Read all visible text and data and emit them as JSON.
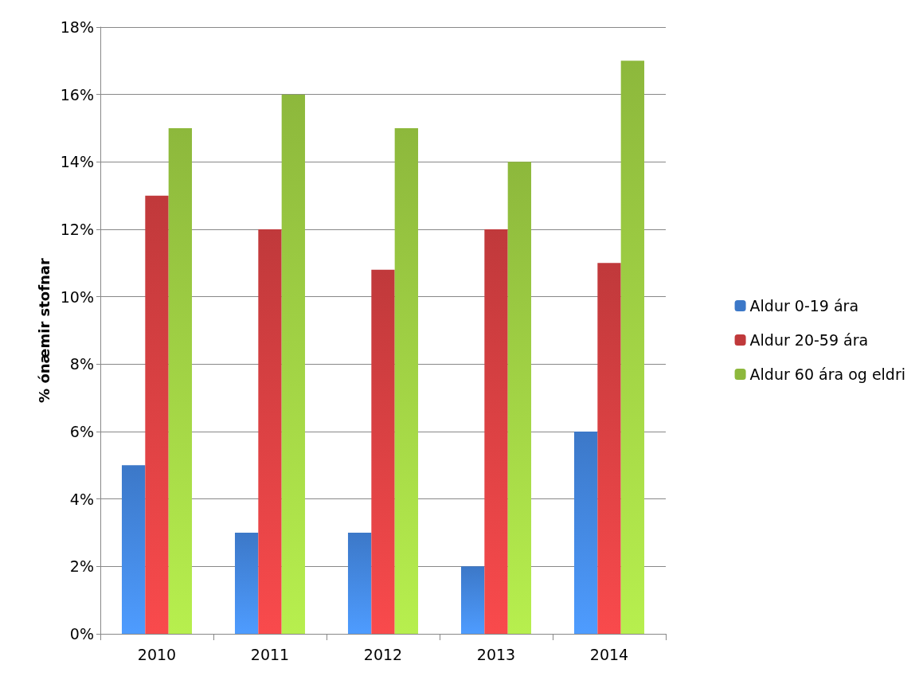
{
  "chart_data": {
    "type": "bar",
    "ylabel": "% ónæmir stofnar",
    "categories": [
      "2010",
      "2011",
      "2012",
      "2013",
      "2014"
    ],
    "series": [
      {
        "name": "Aldur 0-19 ára",
        "color": "#3c78c8",
        "values": [
          5,
          3,
          3,
          2,
          6
        ]
      },
      {
        "name": "Aldur 20-59 ára",
        "color": "#c0393b",
        "values": [
          13,
          12,
          10.8,
          12,
          11
        ]
      },
      {
        "name": "Aldur 60 ára og eldri",
        "color": "#8db83c",
        "values": [
          15,
          16,
          15,
          14,
          17
        ]
      }
    ],
    "ylim": [
      0,
      18
    ],
    "yticks": [
      {
        "value": 0,
        "label": "0%"
      },
      {
        "value": 2,
        "label": "2%"
      },
      {
        "value": 4,
        "label": "4%"
      },
      {
        "value": 6,
        "label": "6%"
      },
      {
        "value": 8,
        "label": "8%"
      },
      {
        "value": 10,
        "label": "10%"
      },
      {
        "value": 12,
        "label": "12%"
      },
      {
        "value": 14,
        "label": "14%"
      },
      {
        "value": 16,
        "label": "16%"
      },
      {
        "value": 18,
        "label": "18%"
      }
    ],
    "grid": "y",
    "legend": "right"
  }
}
